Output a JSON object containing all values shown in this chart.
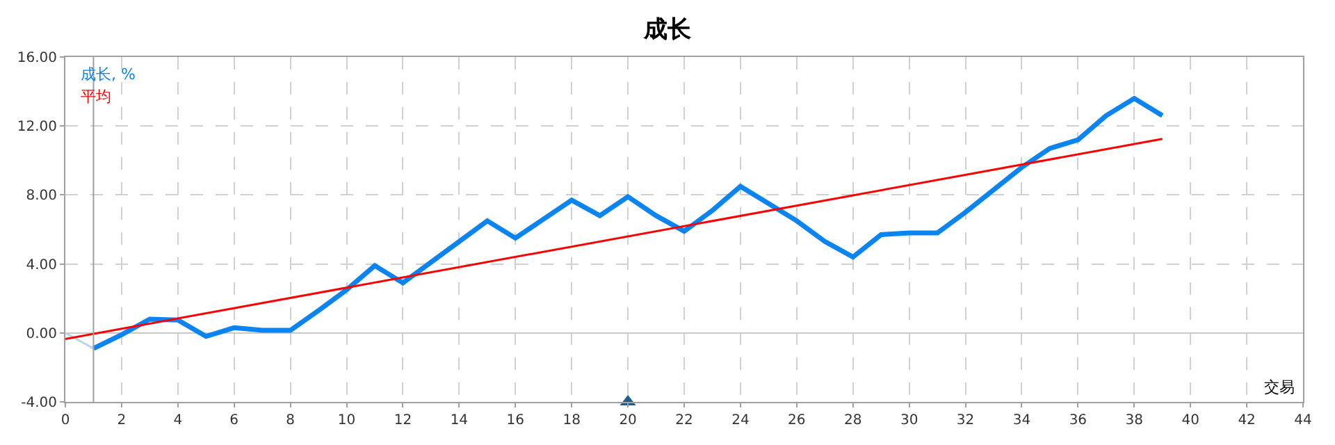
{
  "chart_data": {
    "type": "line",
    "title": "成长",
    "xlabel": "交易",
    "series": [
      {
        "name": "成长, %",
        "color": "#0a84f0",
        "x": [
          1,
          2,
          3,
          4,
          5,
          6,
          7,
          8,
          9,
          10,
          11,
          12,
          13,
          14,
          15,
          16,
          17,
          18,
          19,
          20,
          21,
          22,
          23,
          24,
          25,
          26,
          27,
          28,
          29,
          30,
          31,
          32,
          33,
          34,
          35,
          36,
          37,
          38,
          39
        ],
        "values": [
          -0.9,
          -0.1,
          0.8,
          0.75,
          -0.2,
          0.3,
          0.15,
          0.15,
          1.3,
          2.5,
          3.9,
          2.9,
          4.1,
          5.3,
          6.5,
          5.5,
          6.6,
          7.7,
          6.8,
          7.9,
          6.8,
          5.9,
          7.1,
          8.5,
          7.5,
          6.5,
          5.3,
          4.4,
          5.7,
          5.8,
          5.8,
          7.0,
          8.3,
          9.6,
          10.7,
          11.2,
          12.6,
          13.6,
          12.6
        ]
      },
      {
        "color": "#b8d4ee",
        "x": [
          0,
          1
        ],
        "values": [
          0,
          -0.9
        ]
      },
      {
        "name": "平均",
        "color": "#ff0000",
        "x": [
          0,
          39
        ],
        "values": [
          -0.35,
          11.25
        ]
      },
      {
        "type": "scatter",
        "marker": "triangle",
        "color": "#1f5f8f",
        "x": [
          20
        ],
        "values": [
          -4
        ]
      }
    ],
    "ref_lines": [
      {
        "axis": "x",
        "value": 1,
        "color": "#a0a0a0"
      }
    ],
    "xlim": [
      0,
      44
    ],
    "xticks": [
      0,
      2,
      4,
      6,
      8,
      10,
      12,
      14,
      16,
      18,
      20,
      22,
      24,
      26,
      28,
      30,
      32,
      34,
      36,
      38,
      40,
      42,
      44
    ],
    "ylim": [
      -4,
      16
    ],
    "yticks": [
      {
        "value": -4,
        "label": "-4.00"
      },
      {
        "value": 0,
        "label": "0.00"
      },
      {
        "value": 4,
        "label": "4.00"
      },
      {
        "value": 8,
        "label": "8.00"
      },
      {
        "value": 12,
        "label": "12.00"
      },
      {
        "value": 16,
        "label": "16.00"
      }
    ],
    "grid": true,
    "legend": false,
    "marker": "none",
    "line_style": "solid"
  }
}
